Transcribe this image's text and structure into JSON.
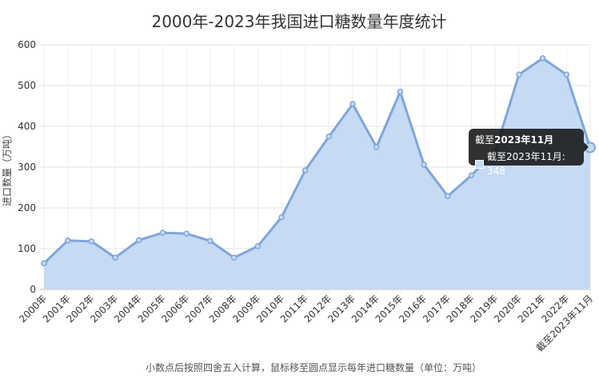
{
  "chart_data": {
    "type": "area",
    "title": "2000年-2023年我国进口糖数量年度统计",
    "ylabel": "进口数量（万吨）",
    "xlabel": "",
    "ylim": [
      0,
      600
    ],
    "yticks": [
      0,
      100,
      200,
      300,
      400,
      500,
      600
    ],
    "grid": true,
    "categories": [
      "2000年",
      "2001年",
      "2002年",
      "2003年",
      "2004年",
      "2005年",
      "2006年",
      "2007年",
      "2008年",
      "2009年",
      "2010年",
      "2011年",
      "2012年",
      "2013年",
      "2014年",
      "2015年",
      "2016年",
      "2017年",
      "2018年",
      "2019年",
      "2020年",
      "2021年",
      "2022年",
      "截至2023年11月"
    ],
    "series": [
      {
        "values": [
          64,
          120,
          118,
          78,
          121,
          139,
          137,
          119,
          78,
          106,
          177,
          292,
          375,
          455,
          349,
          485,
          306,
          229,
          280,
          339,
          527,
          567,
          527,
          348
        ],
        "line_color": "#7fa6dc",
        "fill_color": "#c6daf4"
      }
    ],
    "footnote": "小数点后按照四舍五入计算，鼠标移至圆点显示每年进口糖数量（单位：万吨）",
    "tooltip": {
      "title_prefix": "截至",
      "title_bold": "2023年11月",
      "row_label": "截至2023年11月: 348"
    }
  }
}
